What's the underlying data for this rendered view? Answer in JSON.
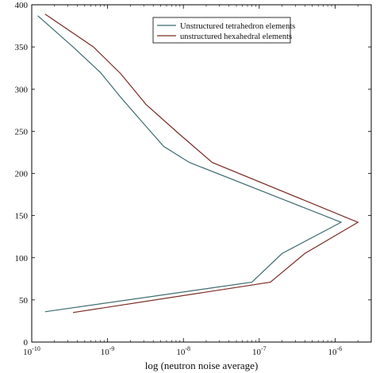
{
  "chart_data": {
    "type": "line",
    "xlabel": "log (neutron noise average)",
    "ylabel": "",
    "x_scale": "log",
    "xlim": [
      1e-10,
      3e-06
    ],
    "ylim": [
      0,
      400
    ],
    "xticks": [
      {
        "value": 1e-10,
        "base": "10",
        "exp": "-10"
      },
      {
        "value": 1e-09,
        "base": "10",
        "exp": "-9"
      },
      {
        "value": 1e-08,
        "base": "10",
        "exp": "-8"
      },
      {
        "value": 1e-07,
        "base": "10",
        "exp": "-7"
      },
      {
        "value": 1e-06,
        "base": "10",
        "exp": "-6"
      }
    ],
    "yticks": [
      "0",
      "50",
      "100",
      "150",
      "200",
      "250",
      "300",
      "350",
      "400"
    ],
    "grid": false,
    "legend_position": "top-right",
    "series": [
      {
        "name": "Unstructured tetrahedron elements",
        "color": "#3d6b6e",
        "points": [
          [
            1.2e-10,
            387
          ],
          [
            3.5e-10,
            350
          ],
          [
            8e-10,
            320
          ],
          [
            1.5e-09,
            290
          ],
          [
            2.8e-09,
            262
          ],
          [
            5.5e-09,
            232
          ],
          [
            1.2e-08,
            213
          ],
          [
            1.2e-06,
            142
          ],
          [
            2e-07,
            105
          ],
          [
            8e-08,
            71
          ],
          [
            1.5e-10,
            36
          ]
        ]
      },
      {
        "name": "unstructured hexahedral elements",
        "color": "#7a2a22",
        "points": [
          [
            1.5e-10,
            389
          ],
          [
            6.5e-10,
            350
          ],
          [
            1.5e-09,
            318
          ],
          [
            3.2e-09,
            282
          ],
          [
            8.5e-09,
            248
          ],
          [
            2.4e-08,
            213
          ],
          [
            2e-06,
            142
          ],
          [
            4e-07,
            105
          ],
          [
            1.4e-07,
            71
          ],
          [
            3.5e-10,
            35
          ]
        ]
      }
    ]
  }
}
